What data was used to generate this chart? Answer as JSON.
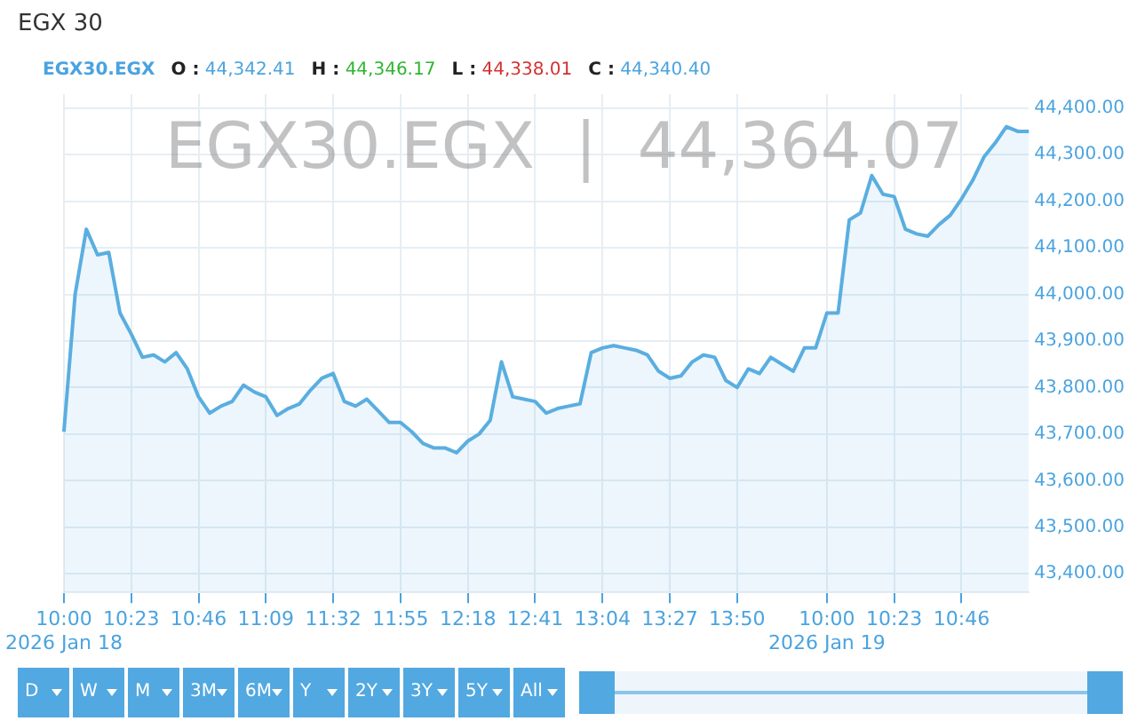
{
  "chart_data": {
    "type": "area",
    "title": "EGX 30",
    "annotations": [
      "EGX30.EGX",
      "O : 44,342.41",
      "H : 44,346.17",
      "L : 44,338.01",
      "C : 44,340.40",
      "EGX30.EGX  |  44,364.07",
      "D",
      "W",
      "M",
      "3M",
      "6M",
      "Y",
      "2Y",
      "3Y",
      "5Y",
      "All"
    ],
    "categories": [
      "10:00\n2026 Jan 18",
      null,
      null,
      null,
      null,
      null,
      "10:23",
      null,
      null,
      null,
      null,
      null,
      "10:46",
      null,
      null,
      null,
      null,
      null,
      "11:09",
      null,
      null,
      null,
      null,
      null,
      "11:32",
      null,
      null,
      null,
      null,
      null,
      "11:55",
      null,
      null,
      null,
      null,
      null,
      "12:18",
      null,
      null,
      null,
      null,
      null,
      "12:41",
      null,
      null,
      null,
      null,
      null,
      "13:04",
      null,
      null,
      null,
      null,
      null,
      "13:27",
      null,
      null,
      null,
      null,
      null,
      "13:50",
      null,
      null,
      null,
      null,
      null,
      null,
      null,
      "10:00\n2026 Jan 19",
      null,
      null,
      null,
      null,
      null,
      "10:23",
      null,
      null,
      null,
      null,
      null,
      "10:46",
      null,
      null,
      null,
      null,
      null,
      null
    ],
    "series": [
      {
        "color": "#5aaee0",
        "values": [
          43705,
          44000,
          44140,
          44085,
          44090,
          43960,
          43915,
          43865,
          43870,
          43855,
          43875,
          43840,
          43780,
          43745,
          43760,
          43770,
          43805,
          43790,
          43780,
          43740,
          43755,
          43765,
          43795,
          43820,
          43830,
          43770,
          43760,
          43775,
          43750,
          43725,
          43725,
          43705,
          43680,
          43670,
          43670,
          43660,
          43685,
          43700,
          43730,
          43855,
          43780,
          43775,
          43770,
          43745,
          43755,
          43760,
          43765,
          43875,
          43885,
          43890,
          43885,
          43880,
          43870,
          43835,
          43820,
          43825,
          43855,
          43870,
          43865,
          43815,
          43800,
          43840,
          43830,
          43865,
          43850,
          43835,
          43885,
          43885,
          43960,
          43960,
          44160,
          44175,
          44255,
          44215,
          44210,
          44140,
          44130,
          44125,
          44150,
          44170,
          44205,
          44245,
          44295,
          44325,
          44360,
          44350,
          44350
        ]
      }
    ],
    "ylim": [
      43360,
      44430
    ],
    "yticks": [
      {
        "value": 43400,
        "label": "43,400.00"
      },
      {
        "value": 43500,
        "label": "43,500.00"
      },
      {
        "value": 43600,
        "label": "43,600.00"
      },
      {
        "value": 43700,
        "label": "43,700.00"
      },
      {
        "value": 43800,
        "label": "43,800.00"
      },
      {
        "value": 43900,
        "label": "43,900.00"
      },
      {
        "value": 44000,
        "label": "44,000.00"
      },
      {
        "value": 44100,
        "label": "44,100.00"
      },
      {
        "value": 44200,
        "label": "44,200.00"
      },
      {
        "value": 44300,
        "label": "44,300.00"
      },
      {
        "value": 44400,
        "label": "44,400.00"
      }
    ],
    "grid": true,
    "marker": "none",
    "line_style": "solid"
  }
}
